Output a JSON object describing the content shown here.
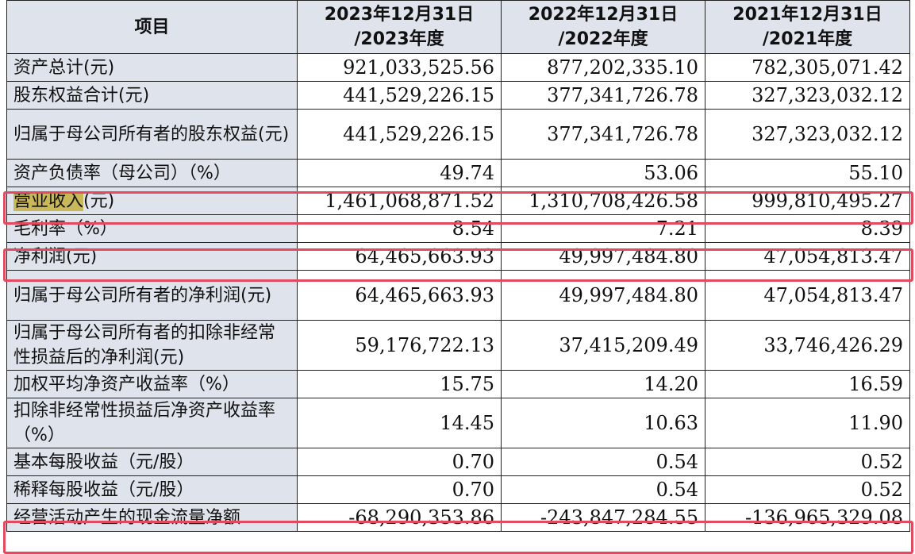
{
  "header": {
    "item": "项目",
    "col1_line1": "2023年12月31日",
    "col1_line2": "/2023年度",
    "col2_line1": "2022年12月31日",
    "col2_line2": "/2022年度",
    "col3_line1": "2021年12月31日",
    "col3_line2": "/2021年度"
  },
  "rows": [
    {
      "label": "资产总计(元)",
      "v2023": "921,033,525.56",
      "v2022": "877,202,335.10",
      "v2021": "782,305,071.42"
    },
    {
      "label": "股东权益合计(元)",
      "v2023": "441,529,226.15",
      "v2022": "377,341,726.78",
      "v2021": "327,323,032.12"
    },
    {
      "label": "归属于母公司所有者的股东权益(元)",
      "v2023": "441,529,226.15",
      "v2022": "377,341,726.78",
      "v2021": "327,323,032.12"
    },
    {
      "label": "资产负债率（母公司）（%）",
      "v2023": "49.74",
      "v2022": "53.06",
      "v2021": "55.10"
    },
    {
      "label_highlight": "营业收入",
      "label_rest": "(元)",
      "v2023": "1,461,068,871.52",
      "v2022": "1,310,708,426.58",
      "v2021": "999,810,495.27"
    },
    {
      "label": "毛利率（%）",
      "v2023": "8.54",
      "v2022": "7.21",
      "v2021": "8.39"
    },
    {
      "label": "净利润(元)",
      "v2023": "64,465,663.93",
      "v2022": "49,997,484.80",
      "v2021": "47,054,813.47"
    },
    {
      "label": "归属于母公司所有者的净利润(元)",
      "v2023": "64,465,663.93",
      "v2022": "49,997,484.80",
      "v2021": "47,054,813.47"
    },
    {
      "label": "归属于母公司所有者的扣除非经常性损益后的净利润(元)",
      "v2023": "59,176,722.13",
      "v2022": "37,415,209.49",
      "v2021": "33,746,426.29"
    },
    {
      "label": "加权平均净资产收益率（%）",
      "v2023": "15.75",
      "v2022": "14.20",
      "v2021": "16.59"
    },
    {
      "label": "扣除非经常性损益后净资产收益率（%）",
      "v2023": "14.45",
      "v2022": "10.63",
      "v2021": "11.90"
    },
    {
      "label": "基本每股收益（元/股）",
      "v2023": "0.70",
      "v2022": "0.54",
      "v2021": "0.52"
    },
    {
      "label": "稀释每股收益（元/股）",
      "v2023": "0.70",
      "v2022": "0.54",
      "v2021": "0.52"
    },
    {
      "label": "经营活动产生的现金流量净额",
      "v2023": "-68,290,353.86",
      "v2022": "-243,847,284.55",
      "v2021": "-136,965,329.08"
    }
  ],
  "colors": {
    "header_bg": "#dfe4ec",
    "highlight_box": "#e24a5f",
    "text_highlight": "#c8b85a"
  }
}
